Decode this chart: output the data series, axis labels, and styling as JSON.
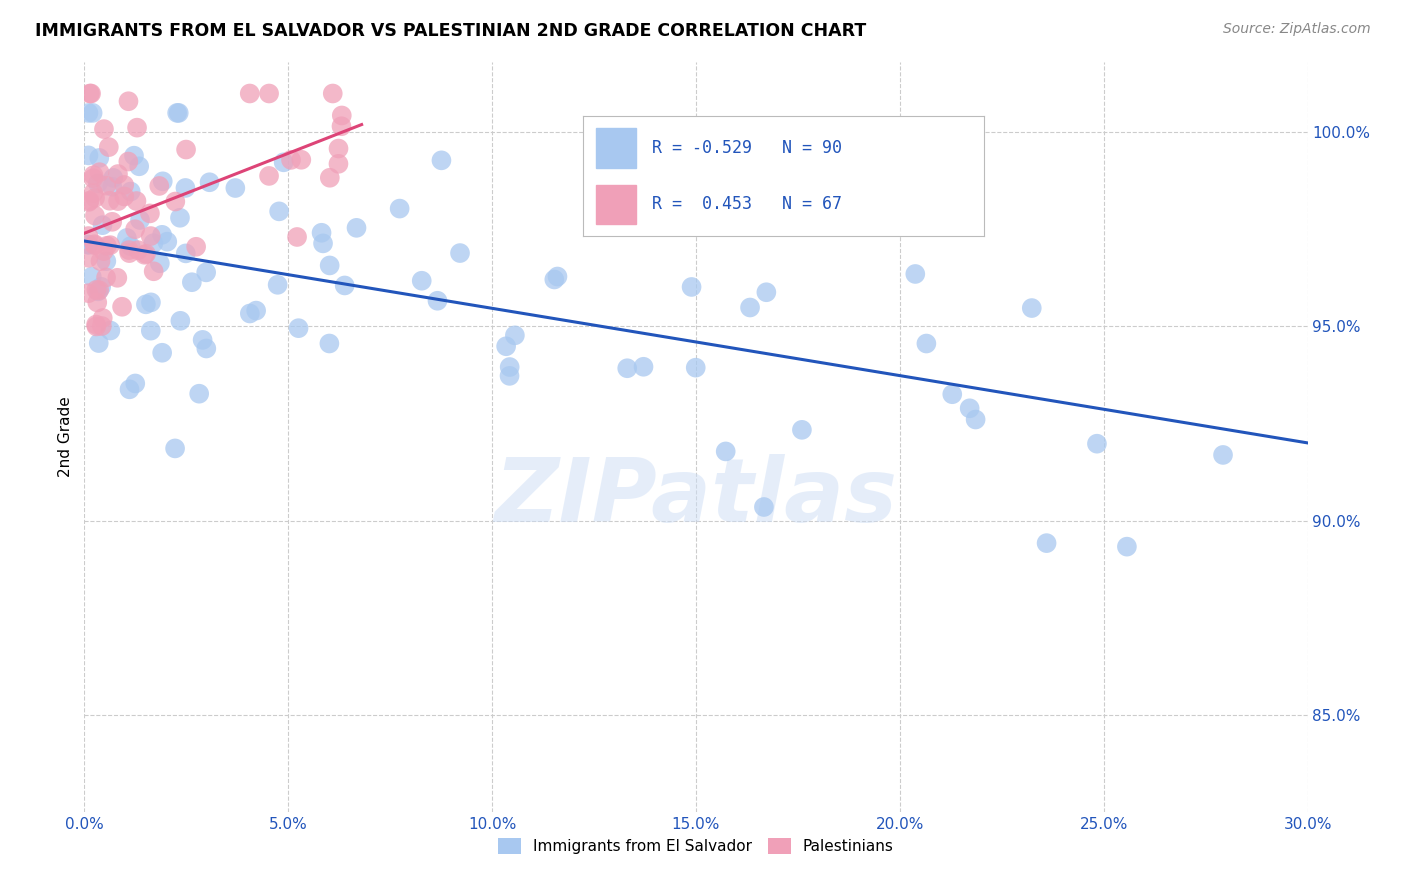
{
  "title": "IMMIGRANTS FROM EL SALVADOR VS PALESTINIAN 2ND GRADE CORRELATION CHART",
  "source": "Source: ZipAtlas.com",
  "ylabel": "2nd Grade",
  "xlim": [
    0.0,
    0.3
  ],
  "ylim": [
    0.825,
    1.018
  ],
  "ytick_vals": [
    0.85,
    0.9,
    0.95,
    1.0
  ],
  "xtick_vals": [
    0.0,
    0.05,
    0.1,
    0.15,
    0.2,
    0.25,
    0.3
  ],
  "legend_blue_r": "-0.529",
  "legend_blue_n": "90",
  "legend_pink_r": "0.453",
  "legend_pink_n": "67",
  "legend_label_blue": "Immigrants from El Salvador",
  "legend_label_pink": "Palestinians",
  "blue_color": "#a8c8f0",
  "pink_color": "#f0a0b8",
  "blue_line_color": "#2255bb",
  "pink_line_color": "#dd4477",
  "watermark": "ZIPatlas",
  "blue_line_x": [
    0.0,
    0.3
  ],
  "blue_line_y": [
    0.972,
    0.92
  ],
  "pink_line_x": [
    0.0,
    0.068
  ],
  "pink_line_y": [
    0.974,
    1.002
  ]
}
